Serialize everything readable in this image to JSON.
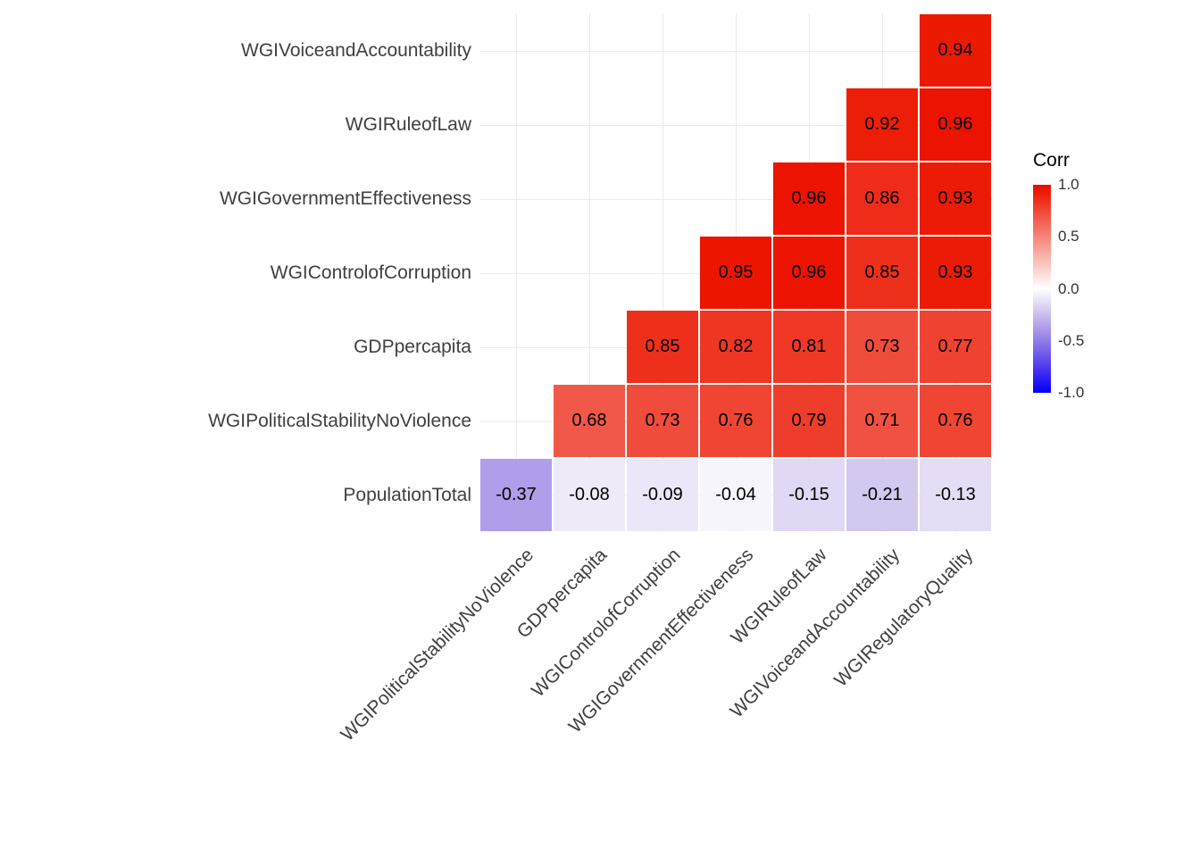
{
  "chart_data": {
    "type": "heatmap",
    "title": "",
    "legend_title": "Corr",
    "legend_position": "right",
    "legend_ticks": [
      "1.0",
      "0.5",
      "0.0",
      "-0.5",
      "-1.0"
    ],
    "value_range": [
      -1,
      1
    ],
    "grid": true,
    "x_categories": [
      "WGIPoliticalStabilityNoViolence",
      "GDPpercapita",
      "WGIControlofCorruption",
      "WGIGovernmentEffectiveness",
      "WGIRuleofLaw",
      "WGIVoiceandAccountability",
      "WGIRegulatoryQuality"
    ],
    "y_categories": [
      "WGIVoiceandAccountability",
      "WGIRuleofLaw",
      "WGIGovernmentEffectiveness",
      "WGIControlofCorruption",
      "GDPpercapita",
      "WGIPoliticalStabilityNoViolence",
      "PopulationTotal"
    ],
    "values": [
      [
        null,
        null,
        null,
        null,
        null,
        null,
        0.94
      ],
      [
        null,
        null,
        null,
        null,
        null,
        0.92,
        0.96
      ],
      [
        null,
        null,
        null,
        null,
        0.96,
        0.86,
        0.93
      ],
      [
        null,
        null,
        null,
        0.95,
        0.96,
        0.85,
        0.93
      ],
      [
        null,
        null,
        0.85,
        0.82,
        0.81,
        0.73,
        0.77
      ],
      [
        null,
        0.68,
        0.73,
        0.76,
        0.79,
        0.71,
        0.76
      ],
      [
        -0.37,
        -0.08,
        -0.09,
        -0.04,
        -0.15,
        -0.21,
        -0.13
      ]
    ],
    "colors": {
      "positive_end": "#EB0A00",
      "negative_end": "#0000FF",
      "midpoint": "#FFFFFF",
      "axis_text": "#404040",
      "gridline": "#EBEBEB",
      "cell_text": "#000000"
    }
  }
}
